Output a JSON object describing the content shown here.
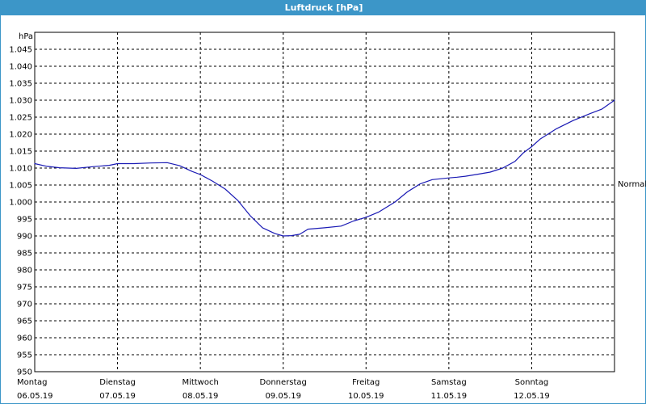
{
  "window": {
    "title": "Luftdruck [hPa]"
  },
  "colors": {
    "titlebar": "#3c96c8",
    "line": "#1a1ab4",
    "grid": "#000000"
  },
  "chart_data": {
    "type": "line",
    "title": "Luftdruck [hPa]",
    "ylabel": "hPa",
    "xlabel": "",
    "ylim": [
      950,
      1050
    ],
    "yticks": [
      950,
      955,
      960,
      965,
      970,
      975,
      980,
      985,
      990,
      995,
      1000,
      1005,
      1010,
      1015,
      1020,
      1025,
      1030,
      1035,
      1040,
      1045
    ],
    "ytick_labels": [
      "950",
      "955",
      "960",
      "965",
      "970",
      "975",
      "980",
      "985",
      "990",
      "995",
      "1.000",
      "1.005",
      "1.010",
      "1.015",
      "1.020",
      "1.025",
      "1.030",
      "1.035",
      "1.040",
      "1.045"
    ],
    "xlim": [
      0,
      7
    ],
    "xticks": [
      {
        "x": 0,
        "day": "Montag",
        "date": "06.05.19"
      },
      {
        "x": 1,
        "day": "Dienstag",
        "date": "07.05.19"
      },
      {
        "x": 2,
        "day": "Mittwoch",
        "date": "08.05.19"
      },
      {
        "x": 3,
        "day": "Donnerstag",
        "date": "09.05.19"
      },
      {
        "x": 4,
        "day": "Freitag",
        "date": "10.05.19"
      },
      {
        "x": 5,
        "day": "Samstag",
        "date": "11.05.19"
      },
      {
        "x": 6,
        "day": "Sonntag",
        "date": "12.05.19"
      }
    ],
    "grid": true,
    "reference_line": {
      "label": "Normal",
      "value": 1005.3
    },
    "series": [
      {
        "x": [
          0,
          0.15,
          0.3,
          0.5,
          0.7,
          0.9,
          1.0,
          1.2,
          1.4,
          1.6,
          1.75,
          1.9,
          2.0,
          2.15,
          2.3,
          2.45,
          2.6,
          2.75,
          2.9,
          3.0,
          3.1,
          3.2,
          3.3,
          3.5,
          3.7,
          3.85,
          4.0,
          4.15,
          4.35,
          4.5,
          4.65,
          4.8,
          5.0,
          5.1,
          5.2,
          5.35,
          5.5,
          5.65,
          5.8,
          5.9,
          6.0,
          6.1,
          6.3,
          6.5,
          6.7,
          6.85,
          7.0
        ],
        "y": [
          1011.3,
          1010.5,
          1010.1,
          1009.9,
          1010.4,
          1010.8,
          1011.3,
          1011.3,
          1011.5,
          1011.6,
          1010.7,
          1009.0,
          1008.1,
          1006.1,
          1003.8,
          1000.5,
          996.0,
          992.4,
          990.7,
          990.0,
          990.1,
          990.5,
          992.0,
          992.4,
          992.9,
          994.4,
          995.5,
          997.0,
          1000.0,
          1003.0,
          1005.3,
          1006.6,
          1007.1,
          1007.3,
          1007.6,
          1008.2,
          1008.8,
          1010.0,
          1012.0,
          1014.5,
          1016.3,
          1018.5,
          1021.6,
          1024.0,
          1026.0,
          1027.4,
          1030.0
        ]
      }
    ]
  }
}
